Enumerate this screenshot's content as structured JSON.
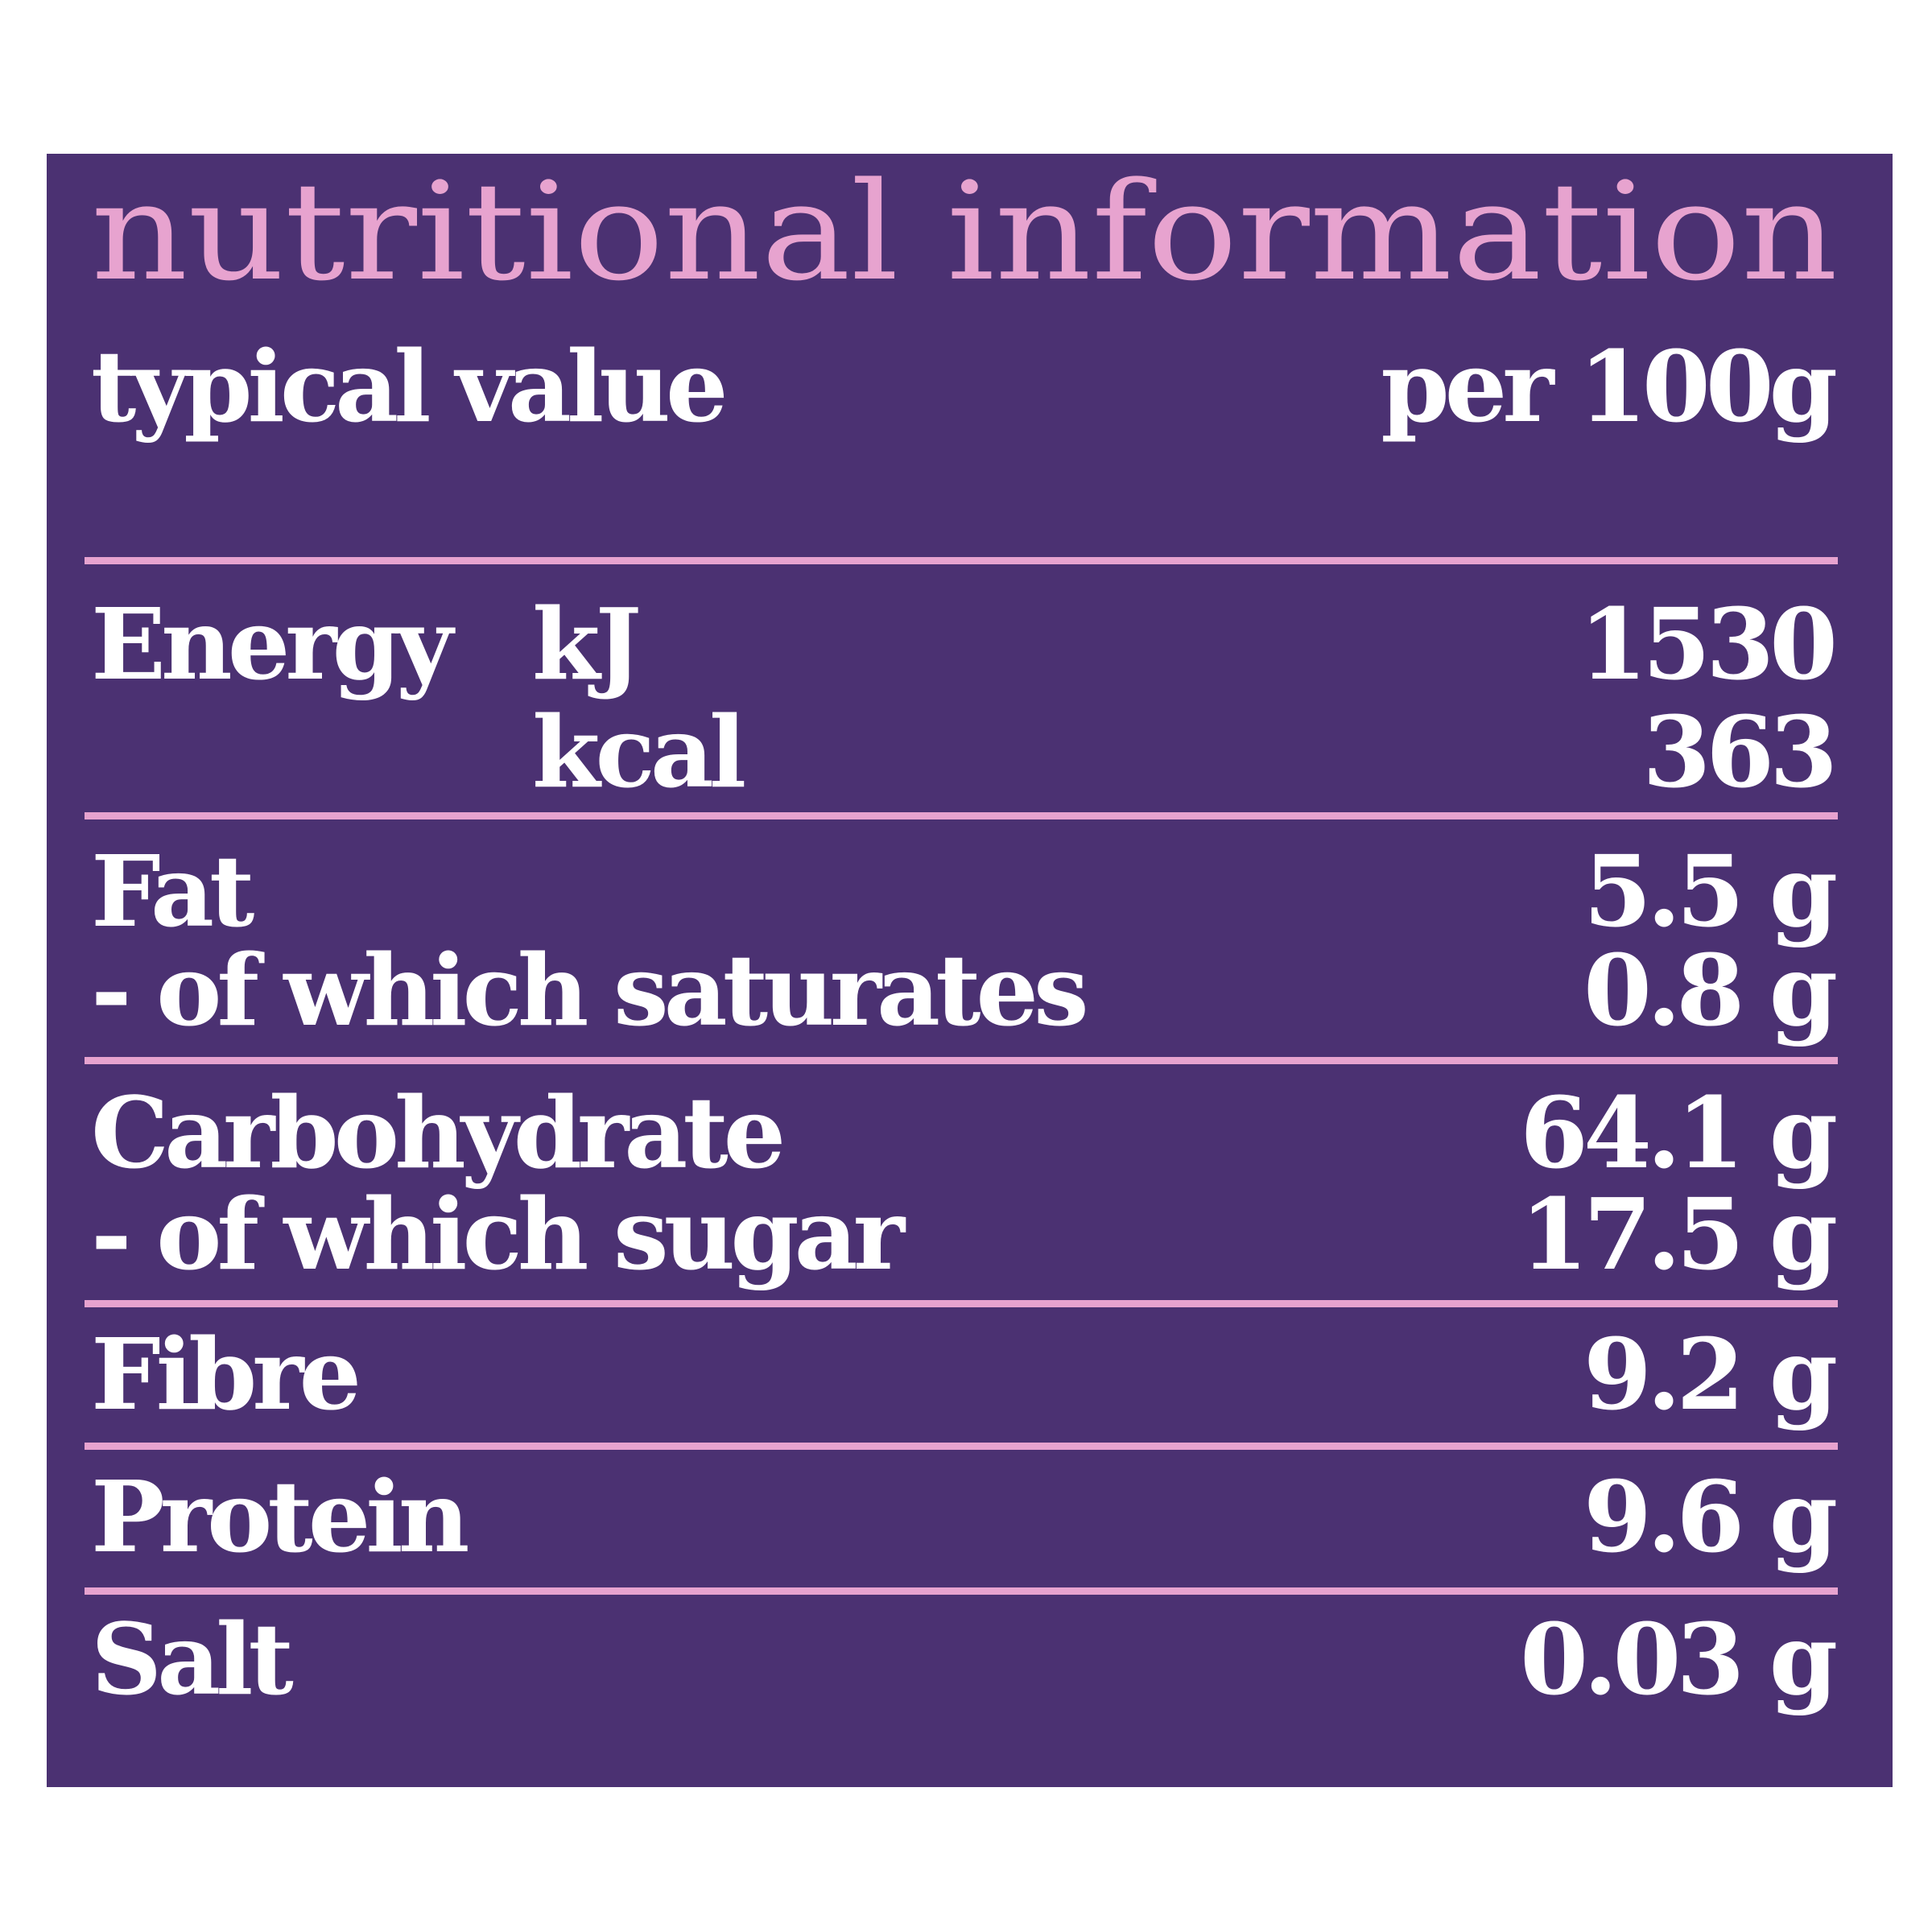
{
  "header": {
    "title": "nutritional information",
    "column_left": "typical value",
    "column_right": "per 100g"
  },
  "sections": [
    {
      "lines": [
        {
          "label": "Energy",
          "unit": "kJ",
          "value": "1530"
        },
        {
          "unit": "kcal",
          "value": "363"
        }
      ]
    },
    {
      "lines": [
        {
          "label": "Fat",
          "value": "5.5 g"
        },
        {
          "label": "- of which saturates",
          "value": "0.8 g"
        }
      ]
    },
    {
      "lines": [
        {
          "label": "Carbohydrate",
          "value": "64.1 g"
        },
        {
          "label": "- of which sugar",
          "value": "17.5 g"
        }
      ]
    },
    {
      "lines": [
        {
          "label": "Fibre",
          "value": "9.2 g"
        }
      ]
    },
    {
      "lines": [
        {
          "label": "Protein",
          "value": "9.6 g"
        }
      ]
    },
    {
      "lines": [
        {
          "label": "Salt",
          "value": "0.03 g"
        }
      ]
    }
  ]
}
